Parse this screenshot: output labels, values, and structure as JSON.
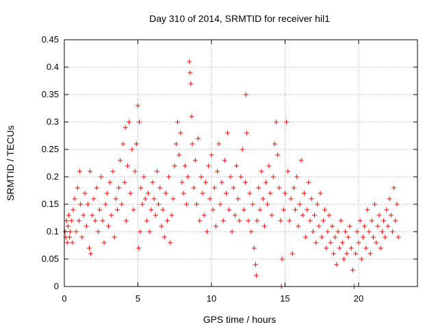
{
  "chart_data": {
    "type": "scatter",
    "title": "Day 310 of 2014, SRMTID for receiver hil1",
    "xlabel": "GPS time / hours",
    "ylabel": "SRMTID / TECUs",
    "xlim": [
      0,
      24
    ],
    "ylim": [
      0,
      0.45
    ],
    "xticks": [
      "0",
      "5",
      "10",
      "15",
      "20"
    ],
    "yticks": [
      "0",
      "0.05",
      "0.1",
      "0.15",
      "0.2",
      "0.25",
      "0.3",
      "0.35",
      "0.4",
      "0.45"
    ],
    "grid": true,
    "marker": "+",
    "color": "#ff0000",
    "series": [
      {
        "points": [
          [
            0.05,
            0.1
          ],
          [
            0.1,
            0.09
          ],
          [
            0.15,
            0.12
          ],
          [
            0.2,
            0.08
          ],
          [
            0.25,
            0.11
          ],
          [
            0.3,
            0.13
          ],
          [
            0.35,
            0.09
          ],
          [
            0.4,
            0.1
          ],
          [
            0.5,
            0.12
          ],
          [
            0.55,
            0.08
          ],
          [
            0.6,
            0.14
          ],
          [
            0.7,
            0.16
          ],
          [
            0.8,
            0.1
          ],
          [
            0.9,
            0.18
          ],
          [
            1.0,
            0.12
          ],
          [
            1.05,
            0.21
          ],
          [
            1.1,
            0.15
          ],
          [
            1.2,
            0.09
          ],
          [
            1.3,
            0.13
          ],
          [
            1.4,
            0.17
          ],
          [
            1.5,
            0.11
          ],
          [
            1.6,
            0.15
          ],
          [
            1.7,
            0.07
          ],
          [
            1.75,
            0.21
          ],
          [
            1.8,
            0.06
          ],
          [
            1.9,
            0.13
          ],
          [
            2.0,
            0.16
          ],
          [
            2.1,
            0.12
          ],
          [
            2.2,
            0.18
          ],
          [
            2.3,
            0.1
          ],
          [
            2.4,
            0.14
          ],
          [
            2.5,
            0.2
          ],
          [
            2.6,
            0.12
          ],
          [
            2.7,
            0.08
          ],
          [
            2.8,
            0.15
          ],
          [
            2.9,
            0.17
          ],
          [
            3.0,
            0.11
          ],
          [
            3.1,
            0.19
          ],
          [
            3.2,
            0.13
          ],
          [
            3.3,
            0.21
          ],
          [
            3.4,
            0.09
          ],
          [
            3.5,
            0.16
          ],
          [
            3.6,
            0.14
          ],
          [
            3.7,
            0.18
          ],
          [
            3.8,
            0.23
          ],
          [
            3.9,
            0.15
          ],
          [
            4.0,
            0.26
          ],
          [
            4.1,
            0.19
          ],
          [
            4.15,
            0.29
          ],
          [
            4.2,
            0.12
          ],
          [
            4.3,
            0.22
          ],
          [
            4.4,
            0.3
          ],
          [
            4.5,
            0.17
          ],
          [
            4.6,
            0.25
          ],
          [
            4.7,
            0.14
          ],
          [
            4.8,
            0.21
          ],
          [
            4.9,
            0.26
          ],
          [
            5.0,
            0.33
          ],
          [
            5.05,
            0.07
          ],
          [
            5.1,
            0.3
          ],
          [
            5.15,
            0.1
          ],
          [
            5.2,
            0.18
          ],
          [
            5.3,
            0.15
          ],
          [
            5.4,
            0.2
          ],
          [
            5.5,
            0.16
          ],
          [
            5.6,
            0.12
          ],
          [
            5.7,
            0.17
          ],
          [
            5.8,
            0.1
          ],
          [
            5.9,
            0.14
          ],
          [
            6.0,
            0.19
          ],
          [
            6.1,
            0.16
          ],
          [
            6.2,
            0.13
          ],
          [
            6.3,
            0.21
          ],
          [
            6.4,
            0.15
          ],
          [
            6.5,
            0.18
          ],
          [
            6.6,
            0.11
          ],
          [
            6.7,
            0.14
          ],
          [
            6.8,
            0.09
          ],
          [
            6.9,
            0.17
          ],
          [
            7.0,
            0.12
          ],
          [
            7.1,
            0.2
          ],
          [
            7.2,
            0.08
          ],
          [
            7.3,
            0.13
          ],
          [
            7.4,
            0.16
          ],
          [
            7.5,
            0.22
          ],
          [
            7.6,
            0.26
          ],
          [
            7.7,
            0.3
          ],
          [
            7.8,
            0.24
          ],
          [
            7.9,
            0.28
          ],
          [
            8.0,
            0.19
          ],
          [
            8.1,
            0.17
          ],
          [
            8.2,
            0.22
          ],
          [
            8.3,
            0.15
          ],
          [
            8.4,
            0.2
          ],
          [
            8.5,
            0.41
          ],
          [
            8.55,
            0.39
          ],
          [
            8.6,
            0.37
          ],
          [
            8.65,
            0.31
          ],
          [
            8.7,
            0.26
          ],
          [
            8.8,
            0.18
          ],
          [
            8.9,
            0.23
          ],
          [
            9.0,
            0.15
          ],
          [
            9.1,
            0.27
          ],
          [
            9.2,
            0.12
          ],
          [
            9.3,
            0.2
          ],
          [
            9.4,
            0.17
          ],
          [
            9.5,
            0.13
          ],
          [
            9.6,
            0.19
          ],
          [
            9.7,
            0.1
          ],
          [
            9.8,
            0.22
          ],
          [
            9.9,
            0.16
          ],
          [
            10.0,
            0.24
          ],
          [
            10.1,
            0.14
          ],
          [
            10.2,
            0.18
          ],
          [
            10.3,
            0.11
          ],
          [
            10.4,
            0.21
          ],
          [
            10.5,
            0.26
          ],
          [
            10.6,
            0.15
          ],
          [
            10.7,
            0.19
          ],
          [
            10.8,
            0.12
          ],
          [
            10.9,
            0.23
          ],
          [
            11.0,
            0.17
          ],
          [
            11.1,
            0.28
          ],
          [
            11.2,
            0.14
          ],
          [
            11.3,
            0.2
          ],
          [
            11.4,
            0.1
          ],
          [
            11.5,
            0.18
          ],
          [
            11.6,
            0.13
          ],
          [
            11.7,
            0.22
          ],
          [
            11.8,
            0.16
          ],
          [
            11.9,
            0.12
          ],
          [
            12.0,
            0.2
          ],
          [
            12.1,
            0.25
          ],
          [
            12.2,
            0.14
          ],
          [
            12.3,
            0.19
          ],
          [
            12.35,
            0.35
          ],
          [
            12.4,
            0.28
          ],
          [
            12.5,
            0.12
          ],
          [
            12.6,
            0.17
          ],
          [
            12.7,
            0.1
          ],
          [
            12.8,
            0.15
          ],
          [
            12.9,
            0.07
          ],
          [
            13.0,
            0.04
          ],
          [
            13.05,
            0.02
          ],
          [
            13.1,
            0.12
          ],
          [
            13.2,
            0.18
          ],
          [
            13.3,
            0.14
          ],
          [
            13.4,
            0.21
          ],
          [
            13.5,
            0.16
          ],
          [
            13.6,
            0.11
          ],
          [
            13.7,
            0.19
          ],
          [
            13.8,
            0.15
          ],
          [
            13.9,
            0.22
          ],
          [
            14.0,
            0.17
          ],
          [
            14.1,
            0.13
          ],
          [
            14.2,
            0.2
          ],
          [
            14.3,
            0.26
          ],
          [
            14.4,
            0.3
          ],
          [
            14.5,
            0.24
          ],
          [
            14.6,
            0.18
          ],
          [
            14.7,
            0.12
          ],
          [
            14.75,
            0.0
          ],
          [
            14.8,
            0.05
          ],
          [
            14.9,
            0.14
          ],
          [
            15.0,
            0.17
          ],
          [
            15.1,
            0.3
          ],
          [
            15.2,
            0.21
          ],
          [
            15.3,
            0.12
          ],
          [
            15.4,
            0.16
          ],
          [
            15.5,
            0.06
          ],
          [
            15.6,
            0.18
          ],
          [
            15.7,
            0.14
          ],
          [
            15.8,
            0.2
          ],
          [
            15.9,
            0.11
          ],
          [
            16.0,
            0.15
          ],
          [
            16.1,
            0.23
          ],
          [
            16.2,
            0.13
          ],
          [
            16.3,
            0.17
          ],
          [
            16.4,
            0.09
          ],
          [
            16.5,
            0.14
          ],
          [
            16.6,
            0.19
          ],
          [
            16.7,
            0.12
          ],
          [
            16.8,
            0.16
          ],
          [
            16.9,
            0.1
          ],
          [
            17.0,
            0.13
          ],
          [
            17.1,
            0.08
          ],
          [
            17.2,
            0.15
          ],
          [
            17.3,
            0.11
          ],
          [
            17.4,
            0.17
          ],
          [
            17.5,
            0.09
          ],
          [
            17.6,
            0.12
          ],
          [
            17.7,
            0.14
          ],
          [
            17.8,
            0.07
          ],
          [
            17.9,
            0.1
          ],
          [
            18.0,
            0.13
          ],
          [
            18.1,
            0.08
          ],
          [
            18.2,
            0.11
          ],
          [
            18.3,
            0.06
          ],
          [
            18.4,
            0.09
          ],
          [
            18.5,
            0.04
          ],
          [
            18.6,
            0.1
          ],
          [
            18.7,
            0.07
          ],
          [
            18.8,
            0.12
          ],
          [
            18.9,
            0.08
          ],
          [
            19.0,
            0.05
          ],
          [
            19.1,
            0.1
          ],
          [
            19.2,
            0.06
          ],
          [
            19.3,
            0.09
          ],
          [
            19.4,
            0.11
          ],
          [
            19.5,
            0.07
          ],
          [
            19.6,
            0.03
          ],
          [
            19.7,
            0.0
          ],
          [
            19.8,
            0.06
          ],
          [
            19.9,
            0.1
          ],
          [
            20.0,
            0.08
          ],
          [
            20.1,
            0.12
          ],
          [
            20.2,
            0.05
          ],
          [
            20.3,
            0.09
          ],
          [
            20.4,
            0.11
          ],
          [
            20.5,
            0.07
          ],
          [
            20.6,
            0.14
          ],
          [
            20.7,
            0.1
          ],
          [
            20.8,
            0.06
          ],
          [
            20.9,
            0.12
          ],
          [
            21.0,
            0.09
          ],
          [
            21.1,
            0.15
          ],
          [
            21.2,
            0.08
          ],
          [
            21.3,
            0.11
          ],
          [
            21.4,
            0.13
          ],
          [
            21.5,
            0.07
          ],
          [
            21.6,
            0.1
          ],
          [
            21.7,
            0.12
          ],
          [
            21.8,
            0.09
          ],
          [
            21.9,
            0.14
          ],
          [
            22.0,
            0.11
          ],
          [
            22.1,
            0.16
          ],
          [
            22.2,
            0.13
          ],
          [
            22.3,
            0.1
          ],
          [
            22.4,
            0.18
          ],
          [
            22.5,
            0.12
          ],
          [
            22.6,
            0.15
          ],
          [
            22.7,
            0.09
          ]
        ]
      }
    ]
  }
}
